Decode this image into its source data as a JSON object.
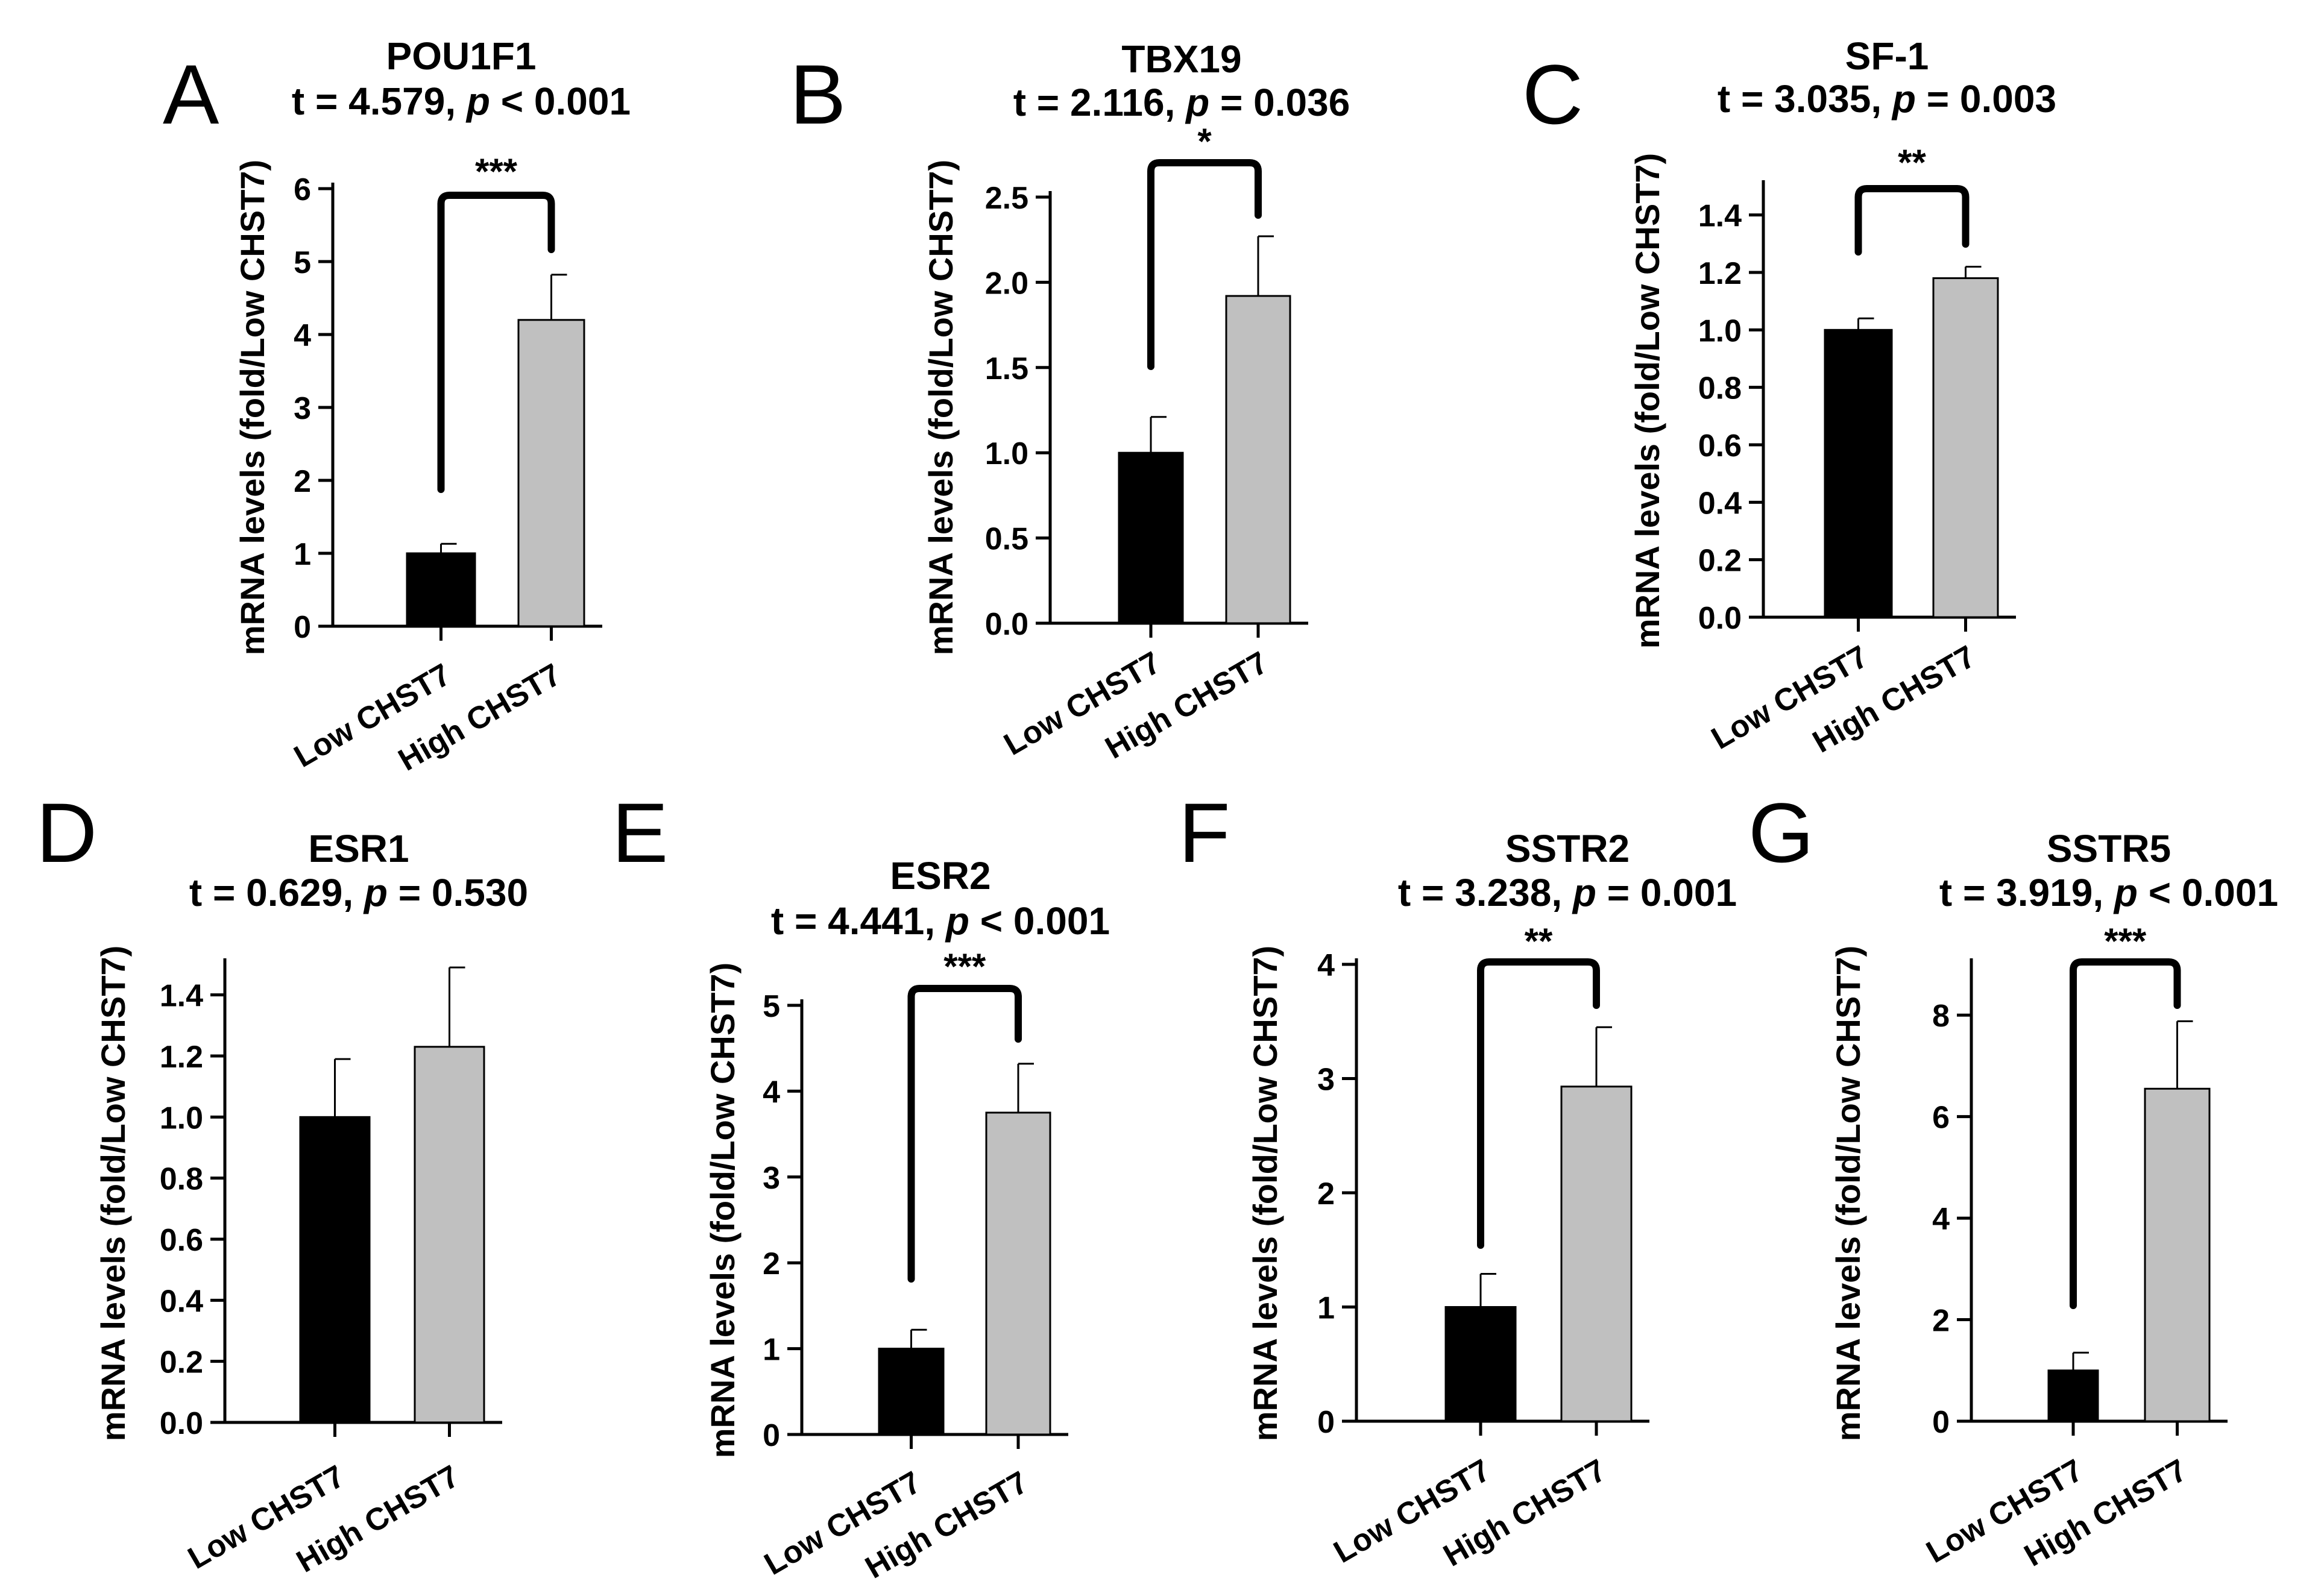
{
  "chart_data": [
    {
      "type": "bar",
      "panel": "A",
      "gene": "POU1F1",
      "stats_prefix": "t = 4.579, ",
      "stats_p": "p",
      "stats_suffix": " < 0.001",
      "categories": [
        "Low CHST7",
        "High CHST7"
      ],
      "values": [
        1.0,
        4.2
      ],
      "errors": [
        0.13,
        0.62
      ],
      "colors": [
        "#000000",
        "#c0c0c0"
      ],
      "ylabel": "mRNA levels (fold/Low CHST7)",
      "ylim": [
        0,
        6
      ],
      "yticks": [
        "0",
        "1",
        "2",
        "3",
        "4",
        "5",
        "6"
      ],
      "significance": "***"
    },
    {
      "type": "bar",
      "panel": "B",
      "gene": "TBX19",
      "stats_prefix": "t = 2.116, ",
      "stats_p": "p",
      "stats_suffix": " = 0.036",
      "categories": [
        "Low CHST7",
        "High CHST7"
      ],
      "values": [
        1.0,
        1.92
      ],
      "errors": [
        0.21,
        0.35
      ],
      "colors": [
        "#000000",
        "#c0c0c0"
      ],
      "ylabel": "mRNA levels (fold/Low CHST7)",
      "ylim": [
        0,
        2.5
      ],
      "yticks": [
        "0.0",
        "0.5",
        "1.0",
        "1.5",
        "2.0",
        "2.5"
      ],
      "significance": "*"
    },
    {
      "type": "bar",
      "panel": "C",
      "gene": "SF-1",
      "stats_prefix": "t = 3.035, ",
      "stats_p": "p",
      "stats_suffix": " = 0.003",
      "categories": [
        "Low CHST7",
        "High CHST7"
      ],
      "values": [
        1.0,
        1.18
      ],
      "errors": [
        0.04,
        0.04
      ],
      "colors": [
        "#000000",
        "#c0c0c0"
      ],
      "ylabel": "mRNA levels (fold/Low CHST7)",
      "ylim": [
        0,
        1.5
      ],
      "yticks": [
        "0.0",
        "0.2",
        "0.4",
        "0.6",
        "0.8",
        "1.0",
        "1.2",
        "1.4"
      ],
      "significance": "**"
    },
    {
      "type": "bar",
      "panel": "D",
      "gene": "ESR1",
      "stats_prefix": "t = 0.629, ",
      "stats_p": "p",
      "stats_suffix": " = 0.530",
      "categories": [
        "Low CHST7",
        "High CHST7"
      ],
      "values": [
        1.0,
        1.23
      ],
      "errors": [
        0.19,
        0.26
      ],
      "colors": [
        "#000000",
        "#c0c0c0"
      ],
      "ylabel": "mRNA levels (fold/Low CHST7)",
      "ylim": [
        0,
        1.5
      ],
      "yticks": [
        "0.0",
        "0.2",
        "0.4",
        "0.6",
        "0.8",
        "1.0",
        "1.2",
        "1.4"
      ],
      "significance": ""
    },
    {
      "type": "bar",
      "panel": "E",
      "gene": "ESR2",
      "stats_prefix": "t = 4.441, ",
      "stats_p": "p",
      "stats_suffix": " < 0.001",
      "categories": [
        "Low CHST7",
        "High CHST7"
      ],
      "values": [
        1.0,
        3.75
      ],
      "errors": [
        0.22,
        0.57
      ],
      "colors": [
        "#000000",
        "#c0c0c0"
      ],
      "ylabel": "mRNA levels (fold/Low CHST7)",
      "ylim": [
        0,
        5
      ],
      "yticks": [
        "0",
        "1",
        "2",
        "3",
        "4",
        "5"
      ],
      "significance": "***"
    },
    {
      "type": "bar",
      "panel": "F",
      "gene": "SSTR2",
      "stats_prefix": "t = 3.238, ",
      "stats_p": "p",
      "stats_suffix": " = 0.001",
      "categories": [
        "Low CHST7",
        "High CHST7"
      ],
      "values": [
        1.0,
        2.93
      ],
      "errors": [
        0.29,
        0.52
      ],
      "colors": [
        "#000000",
        "#c0c0c0"
      ],
      "ylabel": "mRNA levels (fold/Low CHST7)",
      "ylim": [
        0,
        4
      ],
      "yticks": [
        "0",
        "1",
        "2",
        "3",
        "4"
      ],
      "significance": "**"
    },
    {
      "type": "bar",
      "panel": "G",
      "gene": "SSTR5",
      "stats_prefix": "t = 3.919, ",
      "stats_p": "p",
      "stats_suffix": " < 0.001",
      "categories": [
        "Low CHST7",
        "High CHST7"
      ],
      "values": [
        1.0,
        6.55
      ],
      "errors": [
        0.35,
        1.33
      ],
      "colors": [
        "#000000",
        "#c0c0c0"
      ],
      "ylabel": "mRNA levels (fold/Low CHST7)",
      "ylim": [
        0,
        9
      ],
      "yticks": [
        "0",
        "2",
        "4",
        "6",
        "8"
      ],
      "significance": "***"
    }
  ]
}
